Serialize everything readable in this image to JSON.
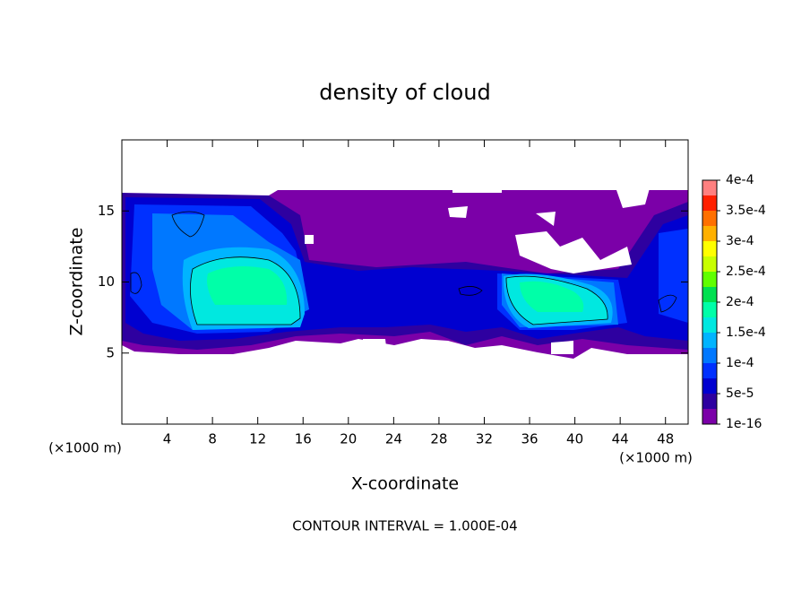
{
  "chart_data": {
    "type": "contour",
    "title": "density of cloud",
    "xlabel": "X-coordinate",
    "ylabel": "Z-coordinate",
    "annotations": [
      "(×1000 m)",
      "(×1000 m)"
    ],
    "footnote": "CONTOUR INTERVAL = 1.000E-04",
    "xlim": [
      0,
      50
    ],
    "xticks": [
      4,
      8,
      12,
      16,
      20,
      24,
      28,
      32,
      36,
      40,
      44,
      48
    ],
    "ylim": [
      0,
      20
    ],
    "yticks": [
      5,
      10,
      15
    ],
    "colorbar": {
      "clim": [
        1e-16,
        0.0004
      ],
      "ticks": [
        {
          "value": 1e-16,
          "label": "1e-16"
        },
        {
          "value": 5e-05,
          "label": "5e-5"
        },
        {
          "value": 0.0001,
          "label": "1e-4"
        },
        {
          "value": 0.00015,
          "label": "1.5e-4"
        },
        {
          "value": 0.0002,
          "label": "2e-4"
        },
        {
          "value": 0.00025,
          "label": "2.5e-4"
        },
        {
          "value": 0.0003,
          "label": "3e-4"
        },
        {
          "value": 0.00035,
          "label": "3.5e-4"
        },
        {
          "value": 0.0004,
          "label": "4e-4"
        }
      ],
      "colors": [
        "#7b00a8",
        "#2e00a0",
        "#0000d0",
        "#0030ff",
        "#0078ff",
        "#00b4ff",
        "#00e8e0",
        "#00ffa8",
        "#00e050",
        "#60ff00",
        "#c8ff00",
        "#ffff00",
        "#ffb000",
        "#ff7000",
        "#ff2000",
        "#ff8080"
      ]
    }
  }
}
